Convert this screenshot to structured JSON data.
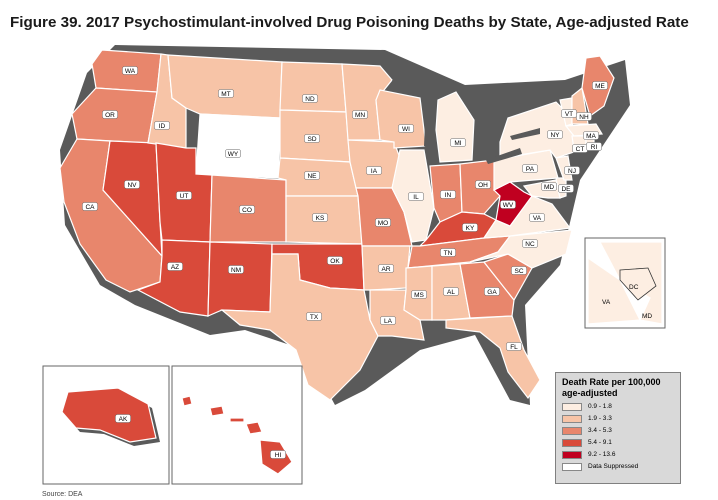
{
  "title": "Figure 39. 2017 Psychostimulant-involved Drug Poisoning Deaths by State, Age-adjusted Rate",
  "colors": {
    "c1": "#fdeee2",
    "c2": "#f7c4a7",
    "c3": "#e8866c",
    "c4": "#d94a3a",
    "c5": "#c00020",
    "suppressed": "#ffffff",
    "shadow": "#5a5a5a",
    "legend_bg": "#d9d9d9"
  },
  "legend": {
    "title_line1": "Death Rate per 100,000",
    "title_line2": "age-adjusted",
    "items": [
      {
        "label": "0.9 - 1.8",
        "color": "#fdeee2"
      },
      {
        "label": "1.9 - 3.3",
        "color": "#f7c4a7"
      },
      {
        "label": "3.4 - 5.3",
        "color": "#e8866c"
      },
      {
        "label": "5.4 - 9.1",
        "color": "#d94a3a"
      },
      {
        "label": "9.2 - 13.6",
        "color": "#c00020"
      },
      {
        "label": "Data Suppressed",
        "color": "#ffffff"
      }
    ]
  },
  "states": {
    "WA": {
      "cls": 3
    },
    "OR": {
      "cls": 3
    },
    "CA": {
      "cls": 3
    },
    "NV": {
      "cls": 4
    },
    "ID": {
      "cls": 2
    },
    "MT": {
      "cls": 2
    },
    "WY": {
      "cls": 0
    },
    "UT": {
      "cls": 4
    },
    "AZ": {
      "cls": 4
    },
    "CO": {
      "cls": 3
    },
    "NM": {
      "cls": 4
    },
    "ND": {
      "cls": 2
    },
    "SD": {
      "cls": 2
    },
    "NE": {
      "cls": 2
    },
    "KS": {
      "cls": 2
    },
    "OK": {
      "cls": 4
    },
    "TX": {
      "cls": 2
    },
    "MN": {
      "cls": 2
    },
    "IA": {
      "cls": 2
    },
    "MO": {
      "cls": 3
    },
    "AR": {
      "cls": 2
    },
    "LA": {
      "cls": 2
    },
    "WI": {
      "cls": 2
    },
    "IL": {
      "cls": 1
    },
    "MI": {
      "cls": 1
    },
    "IN": {
      "cls": 3
    },
    "OH": {
      "cls": 3
    },
    "KY": {
      "cls": 4
    },
    "TN": {
      "cls": 3
    },
    "MS": {
      "cls": 2
    },
    "AL": {
      "cls": 2
    },
    "GA": {
      "cls": 3
    },
    "FL": {
      "cls": 2
    },
    "SC": {
      "cls": 3
    },
    "NC": {
      "cls": 1
    },
    "VA": {
      "cls": 1
    },
    "WV": {
      "cls": 5
    },
    "PA": {
      "cls": 1
    },
    "NY": {
      "cls": 1
    },
    "VT": {
      "cls": 1
    },
    "NH": {
      "cls": 2
    },
    "ME": {
      "cls": 3
    },
    "MA": {
      "cls": 1
    },
    "CT": {
      "cls": 1
    },
    "RI": {
      "cls": 1
    },
    "NJ": {
      "cls": 1
    },
    "DE": {
      "cls": 1
    },
    "MD": {
      "cls": 1
    },
    "DC": {
      "cls": 1
    },
    "AK": {
      "cls": 4
    },
    "HI": {
      "cls": 4
    }
  },
  "inset_labels": {
    "dc_va": "VA",
    "dc_dc": "DC",
    "dc_md": "MD"
  },
  "source": "Source: DEA"
}
